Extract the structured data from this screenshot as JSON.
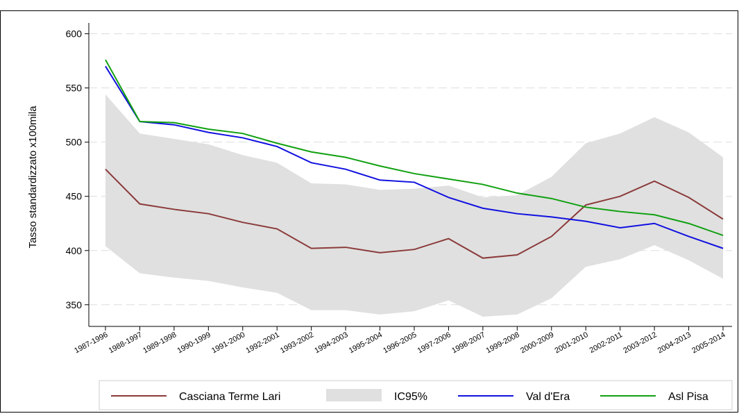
{
  "chart_data": {
    "type": "line",
    "y_label": "Tasso standardizzato x100mila",
    "categories": [
      "1987-1996",
      "1988-1997",
      "1989-1998",
      "1990-1999",
      "1991-2000",
      "1992-2001",
      "1993-2002",
      "1994-2003",
      "1995-2004",
      "1996-2005",
      "1997-2006",
      "1998-2007",
      "1999-2008",
      "2000-2009",
      "2001-2010",
      "2002-2011",
      "2003-2012",
      "2004-2013",
      "2005-2014"
    ],
    "series": [
      {
        "name": "Casciana Terme Lari",
        "color": "#8b3a3a",
        "values": [
          475,
          443,
          438,
          434,
          426,
          420,
          402,
          403,
          398,
          401,
          411,
          393,
          396,
          413,
          442,
          450,
          464,
          449,
          429
        ]
      },
      {
        "name": "IC95%",
        "color": "#e0e0e0",
        "style": "band",
        "lower": [
          404,
          379,
          375,
          372,
          366,
          361,
          345,
          345,
          341,
          344,
          354,
          339,
          341,
          356,
          385,
          392,
          405,
          391,
          374
        ],
        "upper": [
          544,
          508,
          503,
          498,
          488,
          481,
          462,
          461,
          456,
          457,
          460,
          449,
          451,
          468,
          499,
          508,
          523,
          509,
          486
        ]
      },
      {
        "name": "Val d'Era",
        "color": "#1010e0",
        "values": [
          570,
          519,
          516,
          509,
          504,
          496,
          481,
          475,
          465,
          463,
          449,
          439,
          434,
          431,
          427,
          421,
          425,
          413,
          402
        ]
      },
      {
        "name": "Asl Pisa",
        "color": "#10a010",
        "values": [
          576,
          519,
          518,
          512,
          508,
          499,
          491,
          486,
          478,
          471,
          466,
          461,
          453,
          448,
          440,
          436,
          433,
          425,
          414
        ]
      }
    ],
    "ylim": [
      330,
      610
    ],
    "yticks": [
      350,
      400,
      450,
      500,
      550,
      600
    ],
    "grid": true,
    "legend": "bottom"
  }
}
